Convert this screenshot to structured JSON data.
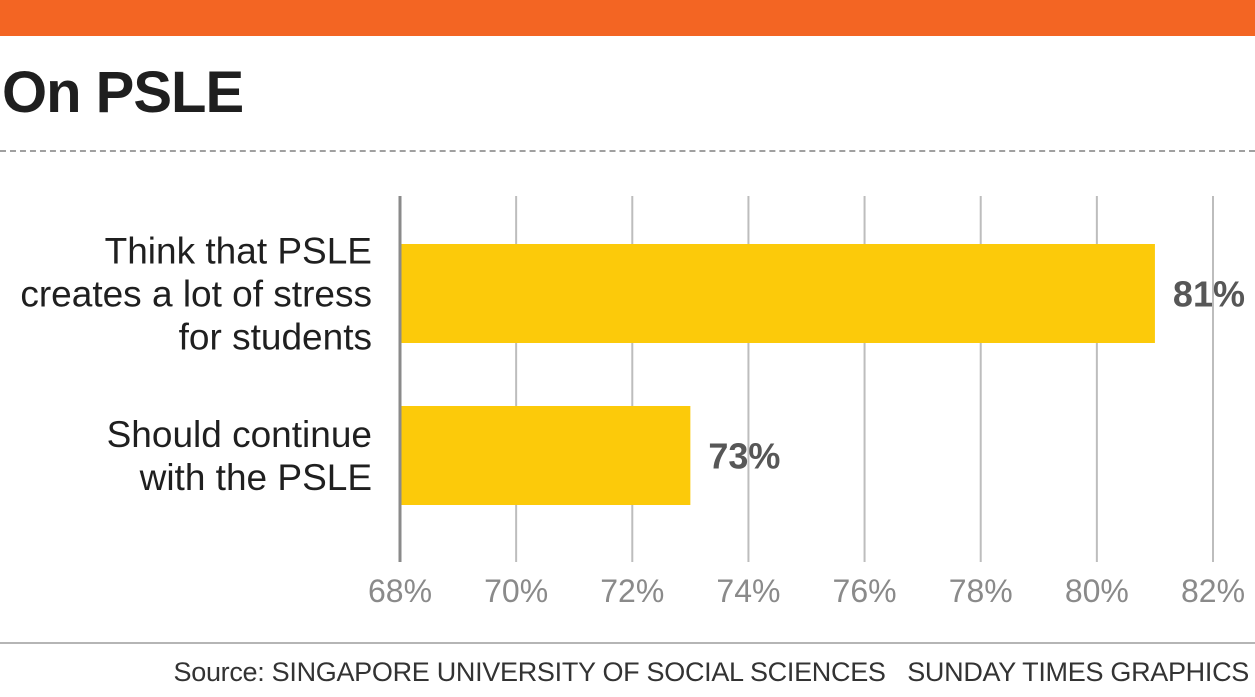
{
  "header": {
    "title": "On PSLE",
    "accent_color": "#f36523"
  },
  "chart_data": {
    "type": "bar",
    "orientation": "horizontal",
    "categories": [
      [
        "Think that PSLE",
        "creates a lot of stress",
        "for students"
      ],
      [
        "Should continue",
        "with the PSLE"
      ]
    ],
    "values": [
      81,
      73
    ],
    "value_labels": [
      "81%",
      "73%"
    ],
    "xlim": [
      68,
      82
    ],
    "ticks": [
      68,
      70,
      72,
      74,
      76,
      78,
      80,
      82
    ],
    "tick_labels": [
      "68%",
      "70%",
      "72%",
      "74%",
      "76%",
      "78%",
      "80%",
      "82%"
    ],
    "grid": true,
    "bar_color": "#fcca0a"
  },
  "footer": {
    "source": "Source: SINGAPORE UNIVERSITY OF SOCIAL SCIENCES",
    "credit": "SUNDAY TIMES GRAPHICS"
  }
}
